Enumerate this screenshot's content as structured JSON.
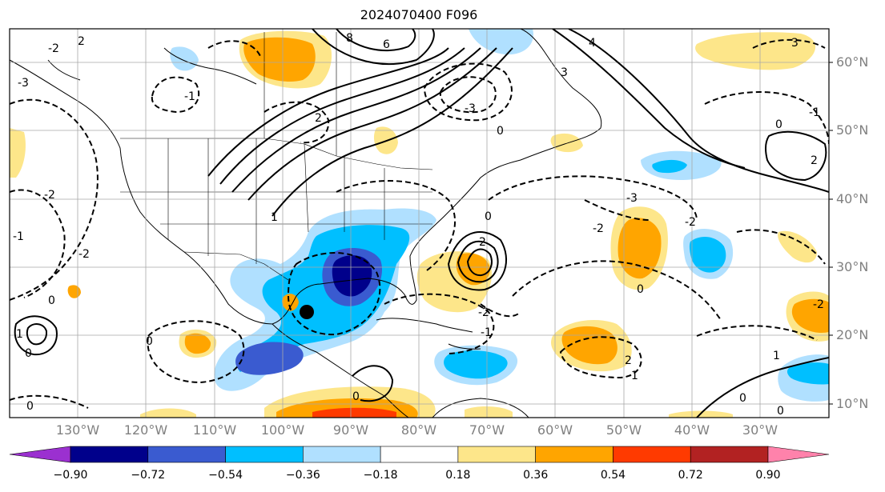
{
  "title": "2024070400 F096",
  "latitude_labels": [
    "60°N",
    "50°N",
    "40°N",
    "30°N",
    "20°N",
    "10°N"
  ],
  "longitude_labels": [
    "130°W",
    "120°W",
    "110°W",
    "100°W",
    "90°W",
    "80°W",
    "70°W",
    "60°W",
    "50°W",
    "40°W",
    "30°W"
  ],
  "colorbar": {
    "ticks": [
      "−0.90",
      "−0.72",
      "−0.54",
      "−0.36",
      "−0.18",
      "0.18",
      "0.36",
      "0.54",
      "0.72",
      "0.90"
    ],
    "colors": [
      "#9b30d0",
      "#00008b",
      "#3a5bd0",
      "#00bfff",
      "#b0e0ff",
      "#ffffff",
      "#fde68a",
      "#ffa500",
      "#ff3a00",
      "#b22222",
      "#ff82ab"
    ]
  },
  "contour_labels": [
    "2",
    "6",
    "8",
    "4",
    "3",
    "-3",
    "-2",
    "-1",
    "0",
    "1",
    "2",
    "-3",
    "3",
    "-2",
    "0",
    "-1",
    "2",
    "-2",
    "-2",
    "0",
    "1",
    "-1",
    "0",
    "-2",
    "0",
    "-3",
    "2",
    "-2",
    "-1",
    "0",
    "2",
    "1",
    "0",
    "-2",
    "0",
    "0",
    "-1",
    "0",
    "0"
  ],
  "marker": "storm-center-dot"
}
